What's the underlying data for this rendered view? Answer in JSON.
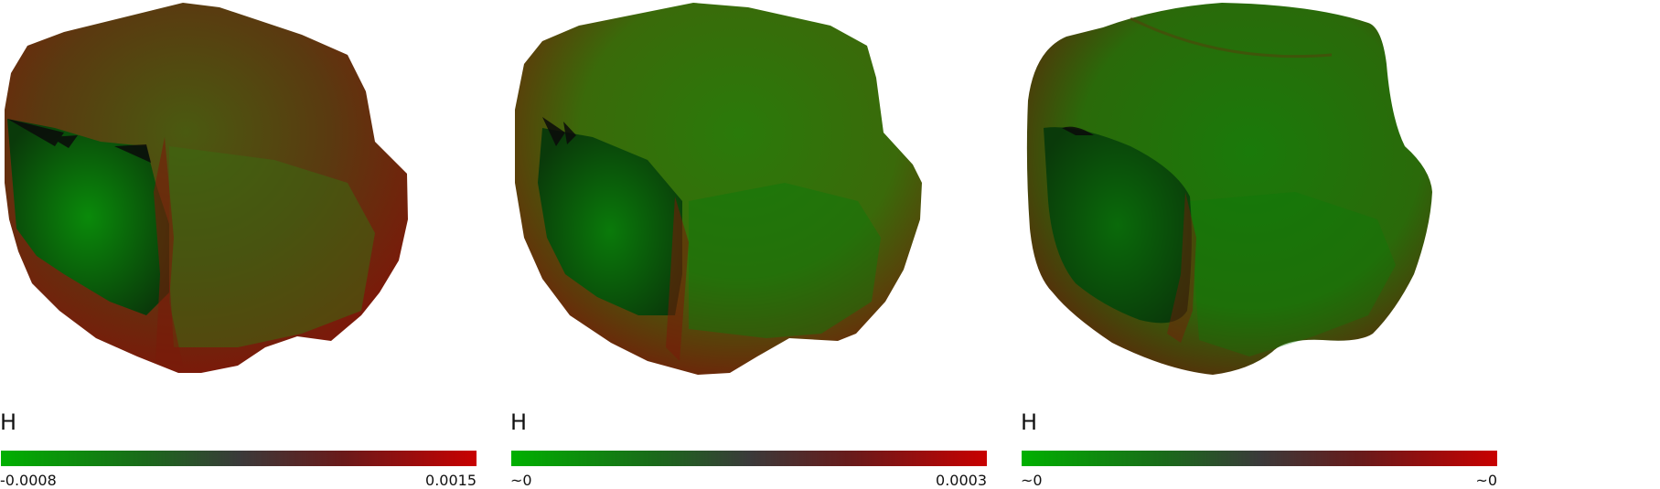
{
  "panels": [
    {
      "label": "H",
      "colorbar_min": "-0.0008",
      "colorbar_max": "0.0015"
    },
    {
      "label": "H",
      "colorbar_min": "~0",
      "colorbar_max": "0.0003"
    },
    {
      "label": "H",
      "colorbar_min": "~0",
      "colorbar_max": "~0"
    }
  ],
  "colors": {
    "low": "#00b000",
    "mid": "#3a3a3a",
    "high": "#c80000"
  }
}
